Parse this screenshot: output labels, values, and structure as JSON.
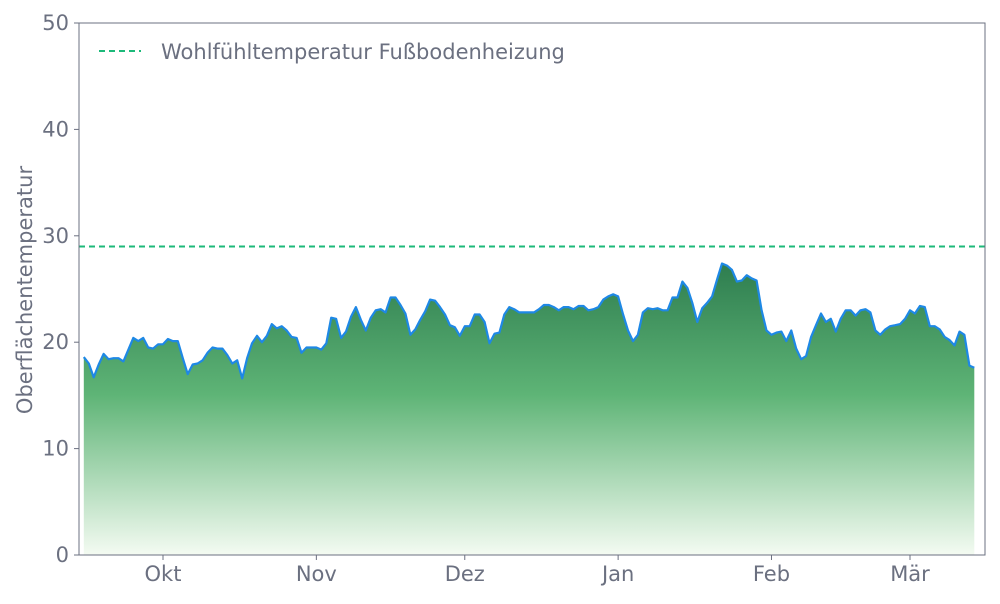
{
  "chart_data": {
    "type": "area",
    "title": "",
    "xlabel": "",
    "ylabel": "Oberflächentemperatur",
    "ylim": [
      0,
      50
    ],
    "yticks": [
      "0",
      "10",
      "20",
      "30",
      "40",
      "50"
    ],
    "xticks": [
      "Okt",
      "Nov",
      "Dez",
      "Jan",
      "Feb",
      "Mär"
    ],
    "grid": false,
    "legend_position": "top-left",
    "series": [
      {
        "values": [
          18.6,
          18.0,
          16.7,
          17.9,
          18.9,
          18.4,
          18.5,
          18.5,
          18.2,
          19.3,
          20.4,
          20.1,
          20.4,
          19.5,
          19.4,
          19.8,
          19.8,
          20.3,
          20.1,
          20.1,
          18.5,
          17.0,
          17.9,
          18.0,
          18.3,
          19.0,
          19.5,
          19.4,
          19.4,
          18.8,
          18.0,
          18.3,
          16.6,
          18.5,
          19.9,
          20.6,
          20.0,
          20.6,
          21.7,
          21.3,
          21.5,
          21.1,
          20.5,
          20.4,
          19.0,
          19.5,
          19.5,
          19.5,
          19.3,
          19.9,
          22.3,
          22.2,
          20.4,
          21.0,
          22.4,
          23.3,
          22.1,
          21.1,
          22.3,
          23.0,
          23.1,
          22.8,
          24.2,
          24.2,
          23.5,
          22.7,
          20.7,
          21.2,
          22.1,
          22.9,
          24.0,
          23.9,
          23.3,
          22.6,
          21.6,
          21.4,
          20.6,
          21.5,
          21.5,
          22.6,
          22.6,
          21.9,
          19.9,
          20.8,
          20.9,
          22.6,
          23.3,
          23.1,
          22.8,
          22.8,
          22.8,
          22.8,
          23.1,
          23.5,
          23.5,
          23.3,
          23.0,
          23.3,
          23.3,
          23.1,
          23.4,
          23.4,
          23.0,
          23.1,
          23.3,
          24.0,
          24.3,
          24.5,
          24.3,
          22.6,
          21.1,
          20.1,
          20.7,
          22.8,
          23.2,
          23.1,
          23.2,
          23.0,
          23.0,
          24.2,
          24.2,
          25.7,
          25.1,
          23.7,
          21.9,
          23.2,
          23.7,
          24.3,
          25.9,
          27.4,
          27.2,
          26.8,
          25.7,
          25.8,
          26.3,
          26.0,
          25.8,
          23.0,
          21.1,
          20.7,
          20.9,
          21.0,
          20.1,
          21.1,
          19.4,
          18.4,
          18.7,
          20.5,
          21.6,
          22.7,
          21.9,
          22.2,
          21.0,
          22.2,
          23.0,
          23.0,
          22.5,
          23.0,
          23.1,
          22.8,
          21.1,
          20.7,
          21.2,
          21.5,
          21.6,
          21.7,
          22.2,
          23.0,
          22.7,
          23.4,
          23.3,
          21.5,
          21.5,
          21.2,
          20.5,
          20.2,
          19.7,
          21.0,
          20.7,
          17.8,
          17.6
        ],
        "line_color": "#1e88e5",
        "fill_top_color": "#2e7d4f",
        "fill_bottom_color": "#f4fbf2"
      }
    ],
    "reference_line": {
      "name": "Wohlfühltemperatur Fußbodenheizung",
      "value": 29,
      "color": "#1db97a",
      "style": "dashed"
    }
  }
}
